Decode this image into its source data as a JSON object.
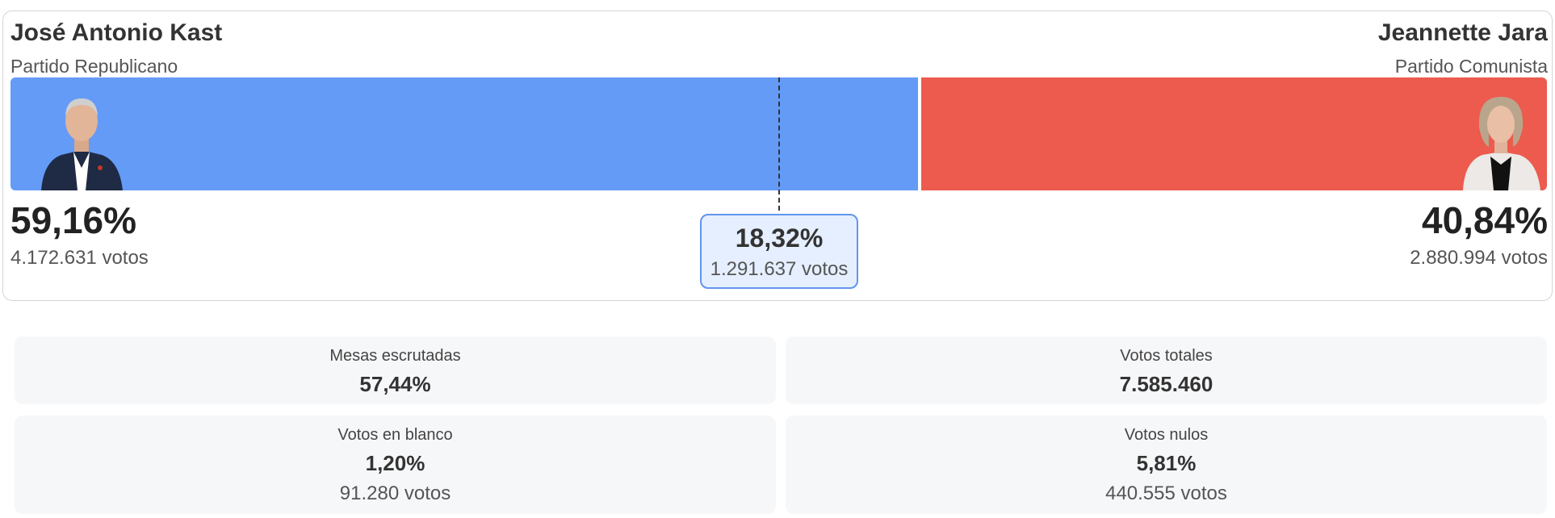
{
  "colors": {
    "candidate_a": "#639bf7",
    "candidate_b": "#ec5b4e",
    "diff_bg": "#e5efff",
    "diff_border": "#6395ed"
  },
  "candidate_a": {
    "name": "José Antonio Kast",
    "party": "Partido Republicano",
    "percent": "59,16%",
    "votes": "4.172.631 votos",
    "share": 0.5916
  },
  "candidate_b": {
    "name": "Jeannette Jara",
    "party": "Partido Comunista",
    "percent": "40,84%",
    "votes": "2.880.994 votos",
    "share": 0.4084
  },
  "difference": {
    "percent": "18,32%",
    "votes": "1.291.637 votos"
  },
  "stats": {
    "mesas": {
      "label": "Mesas escrutadas",
      "value": "57,44%"
    },
    "totales": {
      "label": "Votos totales",
      "value": "7.585.460"
    },
    "blanco": {
      "label": "Votos en blanco",
      "value": "1,20%",
      "sub": "91.280 votos"
    },
    "nulos": {
      "label": "Votos nulos",
      "value": "5,81%",
      "sub": "440.555 votos"
    }
  }
}
